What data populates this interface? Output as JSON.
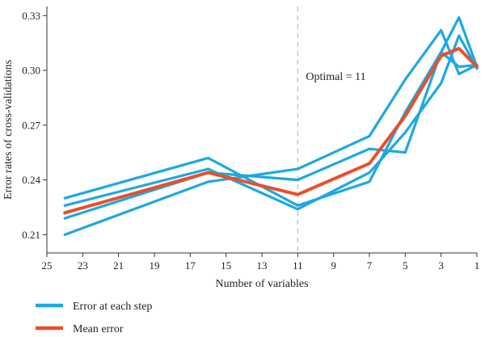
{
  "chart_data": {
    "type": "line",
    "xlabel": "Number of variables",
    "ylabel": "Error rates of cross-validations",
    "xlim": [
      25,
      1
    ],
    "ylim": [
      0.2,
      0.335
    ],
    "x_ticks": [
      "25",
      "23",
      "21",
      "19",
      "17",
      "15",
      "13",
      "11",
      "9",
      "7",
      "5",
      "3",
      "1"
    ],
    "y_ticks": [
      "0.21",
      "0.24",
      "0.27",
      "0.30",
      "0.33"
    ],
    "x_ticks_values": [
      25,
      23,
      21,
      19,
      17,
      15,
      13,
      11,
      9,
      7,
      5,
      3,
      1
    ],
    "y_ticks_values": [
      0.21,
      0.24,
      0.27,
      0.3,
      0.33
    ],
    "grid": false,
    "legend_position": "bottom-left",
    "reference_line": {
      "x": 11,
      "style": "dashed",
      "color": "#bbbbbb"
    },
    "annotation": "Optimal = 11",
    "legend": [
      {
        "label": "Error at each step",
        "color": "#1ea8e0"
      },
      {
        "label": "Mean error",
        "color": "#ea4e2b"
      }
    ],
    "step_series_color": "#1ea8e0",
    "mean_series_color": "#ea4e2b",
    "x": [
      24,
      16,
      11,
      7,
      5,
      3,
      2,
      1
    ],
    "step_series": [
      {
        "values": [
          0.21,
          0.239,
          0.246,
          0.264,
          0.295,
          0.322,
          0.298,
          0.303
        ]
      },
      {
        "values": [
          0.219,
          0.244,
          0.24,
          0.257,
          0.255,
          0.31,
          0.329,
          0.302
        ]
      },
      {
        "values": [
          0.226,
          0.246,
          0.224,
          0.244,
          0.266,
          0.293,
          0.319,
          0.301
        ]
      },
      {
        "values": [
          0.23,
          0.252,
          0.226,
          0.239,
          0.277,
          0.31,
          0.302,
          0.303
        ]
      }
    ],
    "mean_series": {
      "values": [
        0.222,
        0.244,
        0.232,
        0.249,
        0.275,
        0.308,
        0.312,
        0.302
      ]
    }
  }
}
